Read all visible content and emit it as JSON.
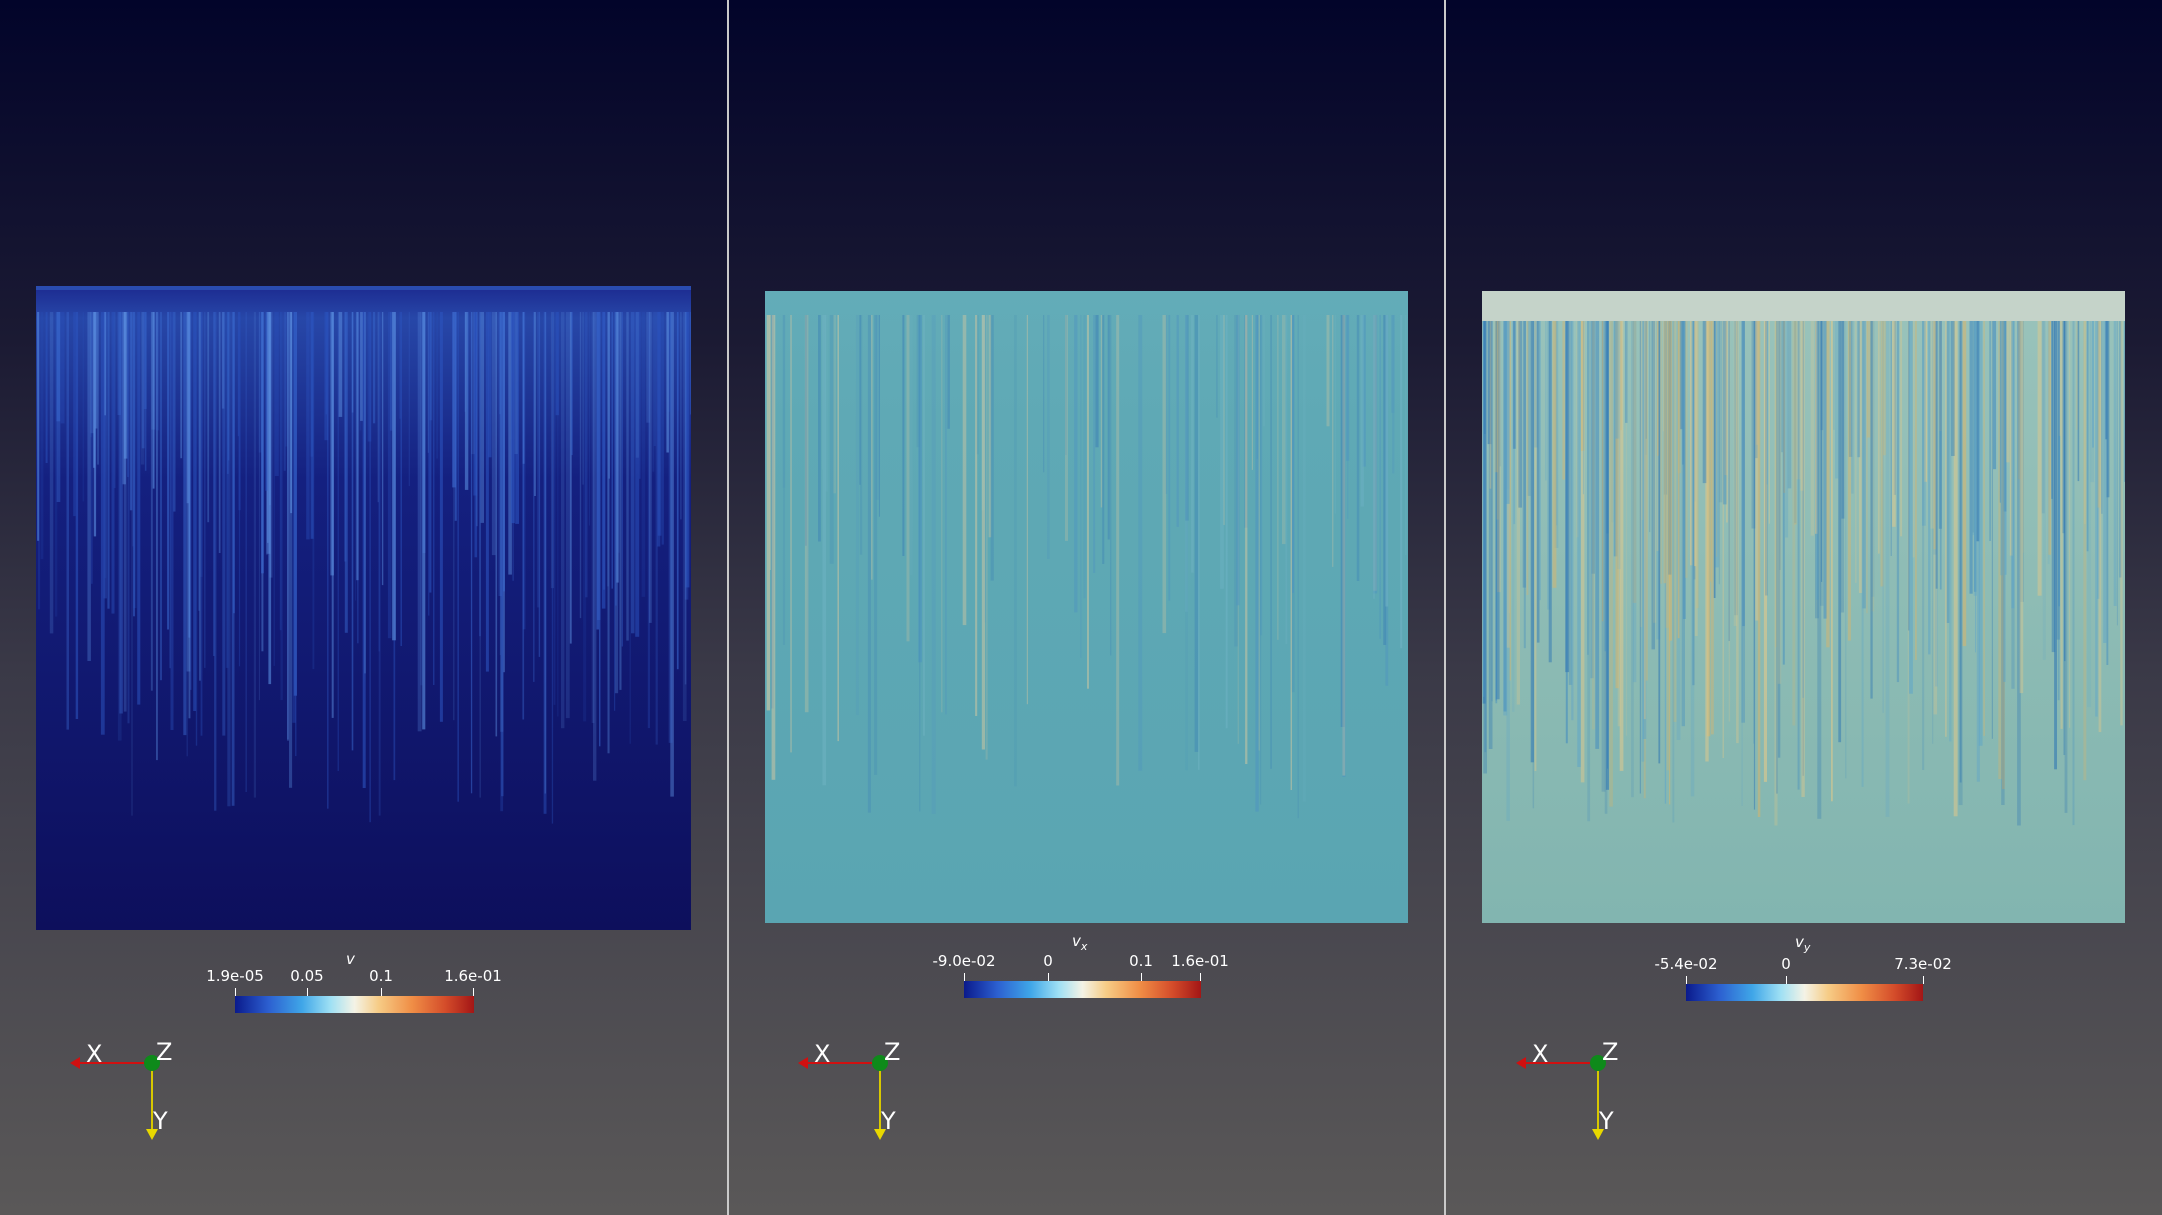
{
  "views": [
    {
      "colorbar": {
        "title": "v",
        "ticks": [
          "1.9e-05",
          "0.05",
          "0.1",
          "1.6e-01"
        ],
        "tick_values": [
          1.9e-05,
          0.05,
          0.1,
          0.16
        ],
        "range": [
          1.9e-05,
          0.16
        ]
      },
      "axes": {
        "x": "X",
        "y": "Y",
        "z": "Z"
      },
      "field_color": "#0d0f5c"
    },
    {
      "colorbar": {
        "title": "vx",
        "ticks": [
          "-9.0e-02",
          "0",
          "0.1",
          "1.6e-01"
        ],
        "tick_values": [
          -0.09,
          0,
          0.1,
          0.16
        ],
        "range": [
          -0.09,
          0.16
        ]
      },
      "axes": {
        "x": "X",
        "y": "Y",
        "z": "Z"
      },
      "field_color": "#5aa6b2"
    },
    {
      "colorbar": {
        "title": "vy",
        "ticks": [
          "-5.4e-02",
          "0",
          "7.3e-02"
        ],
        "tick_values": [
          -0.054,
          0,
          0.073
        ],
        "range": [
          -0.054,
          0.073
        ]
      },
      "axes": {
        "x": "X",
        "y": "Y",
        "z": "Z"
      },
      "field_color": "#84b6b0"
    }
  ]
}
